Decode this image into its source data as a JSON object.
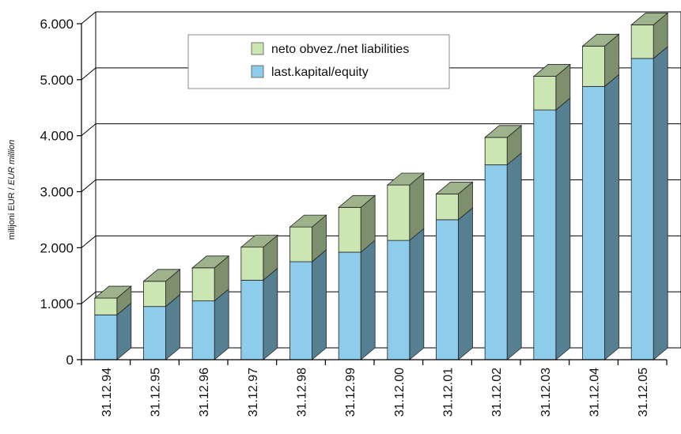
{
  "chart_data": {
    "type": "bar",
    "stacked": true,
    "three_d": true,
    "categories": [
      "31.12.94",
      "31.12.95",
      "31.12.96",
      "31.12.97",
      "31.12.98",
      "31.12.99",
      "31.12.00",
      "31.12.01",
      "31.12.02",
      "31.12.03",
      "31.12.04",
      "31.12.05"
    ],
    "series": [
      {
        "name": "last.kapital/equity",
        "values": [
          800,
          950,
          1050,
          1420,
          1750,
          1920,
          2130,
          2500,
          3480,
          4460,
          4880,
          5380
        ],
        "color": "#8dcdeb"
      },
      {
        "name": "neto obvez./net liabilities",
        "values": [
          300,
          450,
          590,
          590,
          620,
          800,
          990,
          460,
          490,
          600,
          720,
          600
        ],
        "color": "#cbe6b2"
      }
    ],
    "ylim": [
      0,
      6000
    ],
    "yticks": [
      "0",
      "1.000",
      "2.000",
      "3.000",
      "4.000",
      "5.000",
      "6.000"
    ],
    "ylabel_main": "milijoni EUR /",
    "ylabel_italic": "EUR million",
    "grid": true,
    "legend_position": "top-center"
  }
}
